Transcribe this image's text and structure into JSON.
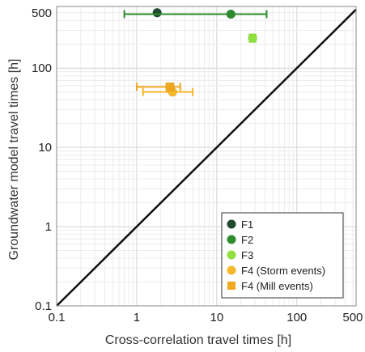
{
  "chart_data": {
    "type": "scatter",
    "x_scale": "log",
    "y_scale": "log",
    "xlim": [
      0.1,
      550
    ],
    "ylim": [
      0.1,
      600
    ],
    "xlabel": "Cross-correlation travel times  [h]",
    "ylabel": "Groundwater model travel times [h]",
    "x_ticks": [
      "0.1",
      "1",
      "10",
      "100",
      "500"
    ],
    "x_tick_values": [
      0.1,
      1,
      10,
      100,
      500
    ],
    "y_ticks": [
      "0.1",
      "1",
      "10",
      "100",
      "500"
    ],
    "y_tick_values": [
      0.1,
      1,
      10,
      100,
      500
    ],
    "grid": true,
    "legend_placement": "bottom-right",
    "reference_line": "1:1",
    "series": [
      {
        "name": "F1",
        "color": "#1f4a2e",
        "marker": "circle",
        "points": [
          {
            "x": 1.8,
            "y": 500
          }
        ]
      },
      {
        "name": "F2",
        "color": "#2e8b2e",
        "marker": "circle",
        "points": [
          {
            "x": 15,
            "y": 480,
            "xerr": [
              0.7,
              42
            ]
          }
        ]
      },
      {
        "name": "F3",
        "color": "#8fe03c",
        "marker": "circle",
        "points": [
          {
            "x": 28,
            "y": 240,
            "yerr": [
              215,
              265
            ]
          }
        ]
      },
      {
        "name": "F4 (Storm events)",
        "color": "#f5b82a",
        "marker": "circle",
        "points": [
          {
            "x": 2.8,
            "y": 50,
            "xerr": [
              1.2,
              5
            ]
          }
        ]
      },
      {
        "name": "F4 (Mill events)",
        "color": "#f0a81e",
        "marker": "square",
        "points": [
          {
            "x": 2.6,
            "y": 58,
            "xerr": [
              1.0,
              3.5
            ]
          }
        ]
      }
    ]
  }
}
